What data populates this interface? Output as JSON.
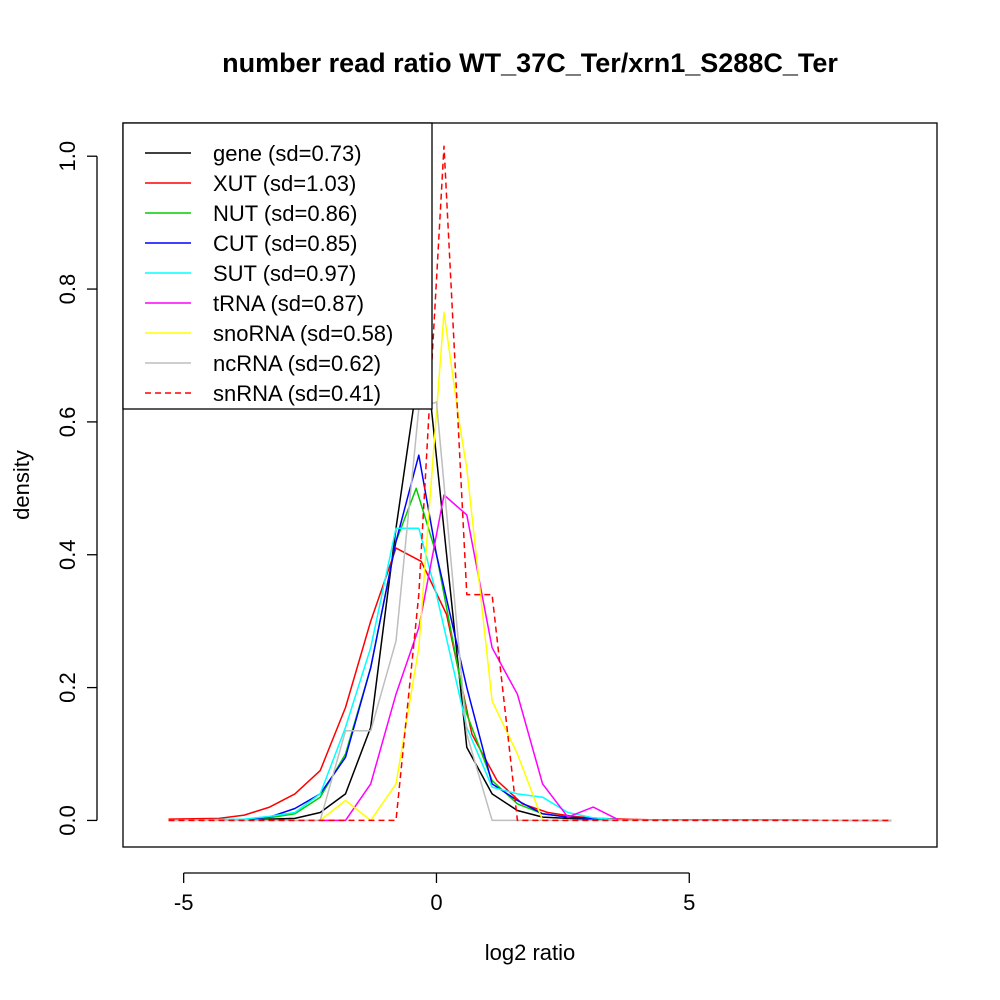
{
  "chart_data": {
    "type": "line",
    "title": "number read ratio WT_37C_Ter/xrn1_S288C_Ter",
    "xlabel": "log2 ratio",
    "ylabel": "density",
    "xlim": [
      -6.2,
      9.9
    ],
    "ylim": [
      -0.04,
      1.05
    ],
    "x_ticks": [
      -5,
      0,
      5
    ],
    "x_tick_labels": [
      "-5",
      "0",
      "5"
    ],
    "y_ticks": [
      0.0,
      0.2,
      0.4,
      0.6,
      0.8,
      1.0
    ],
    "y_tick_labels": [
      "0.0",
      "0.2",
      "0.4",
      "0.6",
      "0.8",
      "1.0"
    ],
    "grid": false,
    "legend_position": "top-left",
    "series": [
      {
        "name": "gene (sd=0.73)",
        "color": "#000000",
        "dash": "solid",
        "points": [
          [
            -5.3,
            0.001
          ],
          [
            -4.3,
            0.001
          ],
          [
            -3.3,
            0.002
          ],
          [
            -2.8,
            0.003
          ],
          [
            -2.3,
            0.012
          ],
          [
            -1.8,
            0.04
          ],
          [
            -1.3,
            0.14
          ],
          [
            -0.8,
            0.44
          ],
          [
            -0.4,
            0.65
          ],
          [
            -0.1,
            0.62
          ],
          [
            0.2,
            0.4
          ],
          [
            0.6,
            0.11
          ],
          [
            1.1,
            0.04
          ],
          [
            1.6,
            0.015
          ],
          [
            2.1,
            0.005
          ],
          [
            2.6,
            0.003
          ],
          [
            3.6,
            0.001
          ],
          [
            9.0,
            0.0
          ]
        ]
      },
      {
        "name": "XUT (sd=1.03)",
        "color": "#ff0000",
        "dash": "solid",
        "points": [
          [
            -5.3,
            0.002
          ],
          [
            -4.3,
            0.003
          ],
          [
            -3.8,
            0.008
          ],
          [
            -3.3,
            0.02
          ],
          [
            -2.8,
            0.04
          ],
          [
            -2.3,
            0.075
          ],
          [
            -1.8,
            0.17
          ],
          [
            -1.3,
            0.3
          ],
          [
            -0.8,
            0.41
          ],
          [
            -0.3,
            0.39
          ],
          [
            0.2,
            0.31
          ],
          [
            0.7,
            0.13
          ],
          [
            1.2,
            0.06
          ],
          [
            1.7,
            0.025
          ],
          [
            2.2,
            0.012
          ],
          [
            2.7,
            0.006
          ],
          [
            3.2,
            0.003
          ],
          [
            4.2,
            0.001
          ],
          [
            9.0,
            0.0
          ]
        ]
      },
      {
        "name": "NUT (sd=0.86)",
        "color": "#00cd00",
        "dash": "solid",
        "points": [
          [
            -5.3,
            0.0
          ],
          [
            -3.8,
            0.001
          ],
          [
            -3.3,
            0.004
          ],
          [
            -2.8,
            0.01
          ],
          [
            -2.3,
            0.035
          ],
          [
            -1.8,
            0.1
          ],
          [
            -1.3,
            0.23
          ],
          [
            -0.8,
            0.42
          ],
          [
            -0.4,
            0.5
          ],
          [
            0.0,
            0.4
          ],
          [
            0.6,
            0.16
          ],
          [
            1.1,
            0.06
          ],
          [
            1.6,
            0.025
          ],
          [
            2.1,
            0.01
          ],
          [
            2.6,
            0.005
          ],
          [
            3.6,
            0.001
          ],
          [
            9.0,
            0.0
          ]
        ]
      },
      {
        "name": "CUT (sd=0.85)",
        "color": "#0000ff",
        "dash": "solid",
        "points": [
          [
            -5.3,
            0.0
          ],
          [
            -3.8,
            0.001
          ],
          [
            -3.3,
            0.005
          ],
          [
            -2.8,
            0.018
          ],
          [
            -2.3,
            0.04
          ],
          [
            -1.8,
            0.095
          ],
          [
            -1.3,
            0.23
          ],
          [
            -0.8,
            0.42
          ],
          [
            -0.35,
            0.55
          ],
          [
            0.0,
            0.4
          ],
          [
            0.6,
            0.2
          ],
          [
            1.1,
            0.055
          ],
          [
            1.6,
            0.03
          ],
          [
            2.1,
            0.01
          ],
          [
            2.6,
            0.005
          ],
          [
            3.6,
            0.001
          ],
          [
            9.0,
            0.0
          ]
        ]
      },
      {
        "name": "SUT (sd=0.97)",
        "color": "#00ffff",
        "dash": "solid",
        "points": [
          [
            -5.3,
            0.0
          ],
          [
            -3.8,
            0.002
          ],
          [
            -3.3,
            0.006
          ],
          [
            -2.8,
            0.012
          ],
          [
            -2.3,
            0.04
          ],
          [
            -1.8,
            0.14
          ],
          [
            -1.3,
            0.26
          ],
          [
            -0.8,
            0.44
          ],
          [
            -0.35,
            0.44
          ],
          [
            0.0,
            0.34
          ],
          [
            0.6,
            0.14
          ],
          [
            1.1,
            0.05
          ],
          [
            1.6,
            0.04
          ],
          [
            2.1,
            0.035
          ],
          [
            2.6,
            0.012
          ],
          [
            3.1,
            0.004
          ],
          [
            3.6,
            0.001
          ],
          [
            9.0,
            0.0
          ]
        ]
      },
      {
        "name": "tRNA (sd=0.87)",
        "color": "#ff00ff",
        "dash": "solid",
        "points": [
          [
            -5.3,
            0.0
          ],
          [
            -1.8,
            0.0
          ],
          [
            -1.3,
            0.055
          ],
          [
            -0.8,
            0.19
          ],
          [
            -0.35,
            0.29
          ],
          [
            0.15,
            0.49
          ],
          [
            0.6,
            0.46
          ],
          [
            1.1,
            0.26
          ],
          [
            1.6,
            0.19
          ],
          [
            2.1,
            0.055
          ],
          [
            2.6,
            0.005
          ],
          [
            3.1,
            0.02
          ],
          [
            3.6,
            0.001
          ],
          [
            9.0,
            0.0
          ]
        ]
      },
      {
        "name": "snoRNA (sd=0.58)",
        "color": "#ffff00",
        "dash": "solid",
        "points": [
          [
            -5.3,
            0.0
          ],
          [
            -2.3,
            0.0
          ],
          [
            -1.8,
            0.03
          ],
          [
            -1.3,
            0.0
          ],
          [
            -0.8,
            0.055
          ],
          [
            -0.35,
            0.26
          ],
          [
            0.15,
            0.765
          ],
          [
            0.45,
            0.6
          ],
          [
            0.6,
            0.53
          ],
          [
            1.1,
            0.18
          ],
          [
            1.6,
            0.1
          ],
          [
            2.1,
            0.0
          ],
          [
            9.0,
            0.0
          ]
        ]
      },
      {
        "name": "ncRNA (sd=0.62)",
        "color": "#bebebe",
        "dash": "solid",
        "points": [
          [
            -5.3,
            0.0
          ],
          [
            -2.3,
            0.0
          ],
          [
            -1.8,
            0.135
          ],
          [
            -1.3,
            0.135
          ],
          [
            -0.8,
            0.27
          ],
          [
            -0.35,
            0.62
          ],
          [
            0.0,
            0.63
          ],
          [
            0.6,
            0.13
          ],
          [
            1.1,
            0.0
          ],
          [
            9.0,
            0.0
          ]
        ]
      },
      {
        "name": "snRNA (sd=0.41)",
        "color": "#ff0000",
        "dash": "dashed",
        "points": [
          [
            -5.3,
            0.0
          ],
          [
            -0.8,
            0.0
          ],
          [
            -0.35,
            0.34
          ],
          [
            0.15,
            1.015
          ],
          [
            0.6,
            0.34
          ],
          [
            1.1,
            0.34
          ],
          [
            1.6,
            0.0
          ],
          [
            9.0,
            0.0
          ]
        ]
      }
    ]
  }
}
